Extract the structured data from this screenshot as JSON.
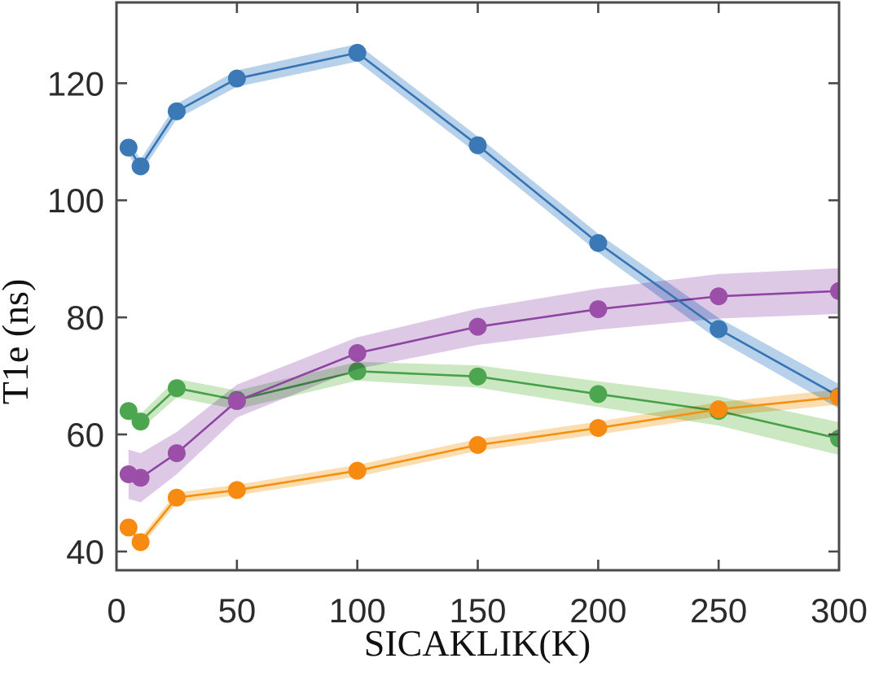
{
  "figure": {
    "background": "#ffffff",
    "axis_color": "#4a4a4a",
    "tick_label_color": "#2b2b2b",
    "title_color": "#111111"
  },
  "chart_data": {
    "type": "line",
    "title": "",
    "xlabel": "SICAKLIK(K)",
    "ylabel": "T1e (ns)",
    "grid": false,
    "legend": "none",
    "x": [
      5,
      10,
      25,
      50,
      100,
      150,
      200,
      250,
      300
    ],
    "xlim": [
      0,
      300
    ],
    "ylim": [
      36.8,
      133.8
    ],
    "xticks": [
      0,
      50,
      100,
      150,
      200,
      250,
      300
    ],
    "yticks": [
      40,
      60,
      80,
      100,
      120
    ],
    "series": [
      {
        "name": "green",
        "values": [
          64.0,
          62.2,
          67.9,
          65.9,
          70.8,
          69.9,
          66.9,
          64.0,
          59.3
        ],
        "band_halfwidth": [
          1.3,
          1.3,
          1.6,
          1.6,
          1.6,
          1.9,
          2.2,
          2.5,
          2.8
        ],
        "line_color": "#47a04a",
        "marker_color": "#4ca64f",
        "band_color": "#c5e6bd"
      },
      {
        "name": "purple",
        "values": [
          53.2,
          52.6,
          56.8,
          65.7,
          73.9,
          78.4,
          81.4,
          83.6,
          84.5
        ],
        "band_halfwidth": [
          4.2,
          4.2,
          3.6,
          2.8,
          2.7,
          3.1,
          3.5,
          3.8,
          3.9
        ],
        "line_color": "#8e44a2",
        "marker_color": "#9b4fa8",
        "band_color": "#d9c3e3"
      },
      {
        "name": "blue",
        "values": [
          109.0,
          105.8,
          115.2,
          120.8,
          125.2,
          109.4,
          92.7,
          78.0,
          66.5
        ],
        "band_halfwidth": [
          1.2,
          1.2,
          1.3,
          1.4,
          1.5,
          1.5,
          1.6,
          1.9,
          2.1
        ],
        "line_color": "#3474b4",
        "marker_color": "#3a78b6",
        "band_color": "#afcce9"
      },
      {
        "name": "orange",
        "values": [
          44.1,
          41.6,
          49.2,
          50.5,
          53.8,
          58.2,
          61.1,
          64.3,
          66.4
        ],
        "band_halfwidth": [
          0.8,
          0.8,
          0.9,
          0.9,
          1.0,
          1.0,
          1.1,
          1.2,
          1.3
        ],
        "line_color": "#f5900f",
        "marker_color": "#f78a10",
        "band_color": "#fbd9a6"
      }
    ]
  }
}
